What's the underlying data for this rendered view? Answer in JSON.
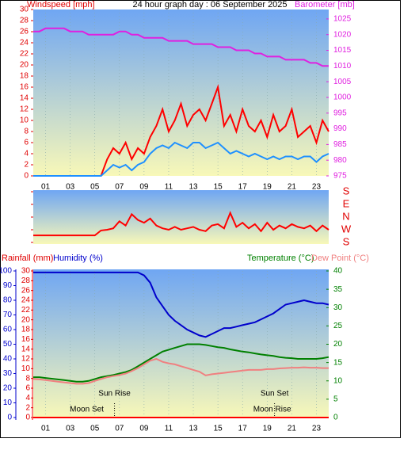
{
  "chart_data": [
    {
      "type": "line",
      "title": "24 hour graph day : 06 September 2025",
      "ylabel": "Windspeed [mph]",
      "y2label": "Barometer [mb]",
      "xlim": [
        0,
        24
      ],
      "xticks": [
        {
          "value": 1,
          "label": "01"
        },
        {
          "value": 3,
          "label": "03"
        },
        {
          "value": 5,
          "label": "05"
        },
        {
          "value": 7,
          "label": "07"
        },
        {
          "value": 9,
          "label": "09"
        },
        {
          "value": 11,
          "label": "11"
        },
        {
          "value": 13,
          "label": "13"
        },
        {
          "value": 15,
          "label": "15"
        },
        {
          "value": 17,
          "label": "17"
        },
        {
          "value": 19,
          "label": "19"
        },
        {
          "value": 21,
          "label": "21"
        },
        {
          "value": 23,
          "label": "23"
        }
      ],
      "ylim": [
        0,
        30
      ],
      "yticks": [
        0,
        2,
        4,
        6,
        8,
        10,
        12,
        14,
        16,
        18,
        20,
        22,
        24,
        26,
        28,
        30
      ],
      "y2lim": [
        975,
        1028
      ],
      "y2ticks": [
        975,
        980,
        985,
        990,
        995,
        1000,
        1005,
        1010,
        1015,
        1020,
        1025
      ],
      "x": [
        0,
        0.5,
        1,
        1.5,
        2,
        2.5,
        3,
        3.5,
        4,
        4.5,
        5,
        5.5,
        6,
        6.5,
        7,
        7.5,
        8,
        8.5,
        9,
        9.5,
        10,
        10.5,
        11,
        11.5,
        12,
        12.5,
        13,
        13.5,
        14,
        14.5,
        15,
        15.5,
        16,
        16.5,
        17,
        17.5,
        18,
        18.5,
        19,
        19.5,
        20,
        20.5,
        21,
        21.5,
        22,
        22.5,
        23,
        23.5,
        24
      ],
      "series": [
        {
          "color": "#ff0000",
          "axis": "y",
          "values": [
            0,
            0,
            0,
            0,
            0,
            0,
            0,
            0,
            0,
            0,
            0,
            0,
            3,
            5,
            4,
            6,
            3,
            5,
            4,
            7,
            9,
            12,
            8,
            10,
            13,
            9,
            11,
            12,
            10,
            13,
            16,
            9,
            11,
            8,
            12,
            9,
            8,
            10,
            7,
            11,
            8,
            9,
            12,
            7,
            8,
            9,
            6,
            10,
            8
          ]
        },
        {
          "color": "#1e90ff",
          "axis": "y",
          "values": [
            0,
            0,
            0,
            0,
            0,
            0,
            0,
            0,
            0,
            0,
            0,
            0,
            1,
            2,
            1.5,
            2,
            1,
            2,
            2.5,
            4,
            5,
            5.5,
            5,
            6,
            5.5,
            5,
            6,
            6,
            5,
            5.5,
            6,
            5,
            4,
            4.5,
            4,
            3.5,
            4,
            3.5,
            3,
            3.5,
            3,
            3.5,
            3.5,
            3,
            3.5,
            3.5,
            2.5,
            3.5,
            4
          ]
        },
        {
          "color": "#e020e0",
          "axis": "y2",
          "values": [
            1021,
            1021,
            1022,
            1022,
            1022,
            1022,
            1021,
            1021,
            1021,
            1020,
            1020,
            1020,
            1020,
            1020,
            1021,
            1021,
            1020,
            1020,
            1019,
            1019,
            1019,
            1019,
            1018,
            1018,
            1018,
            1018,
            1017,
            1017,
            1017,
            1017,
            1016,
            1016,
            1016,
            1015,
            1015,
            1015,
            1014,
            1014,
            1013,
            1013,
            1013,
            1012,
            1012,
            1012,
            1012,
            1011,
            1011,
            1010,
            1010
          ]
        }
      ]
    },
    {
      "type": "line",
      "xlim": [
        0,
        24
      ],
      "ylim": [
        -180,
        180
      ],
      "yticks": [
        {
          "value": 180,
          "label": "S"
        },
        {
          "value": 90,
          "label": "E"
        },
        {
          "value": 0,
          "label": "N"
        },
        {
          "value": -90,
          "label": "W"
        },
        {
          "value": -180,
          "label": "S"
        }
      ],
      "x": [
        0,
        0.5,
        1,
        1.5,
        2,
        2.5,
        3,
        3.5,
        4,
        4.5,
        5,
        5.5,
        6,
        6.5,
        7,
        7.5,
        8,
        8.5,
        9,
        9.5,
        10,
        10.5,
        11,
        11.5,
        12,
        12.5,
        13,
        13.5,
        14,
        14.5,
        15,
        15.5,
        16,
        16.5,
        17,
        17.5,
        18,
        18.5,
        19,
        19.5,
        20,
        20.5,
        21,
        21.5,
        22,
        22.5,
        23,
        23.5,
        24
      ],
      "series": [
        {
          "color": "#ff0000",
          "axis": "y",
          "values": [
            -130,
            -130,
            -130,
            -130,
            -130,
            -130,
            -130,
            -130,
            -130,
            -130,
            -130,
            -95,
            -90,
            -80,
            -30,
            -60,
            20,
            -20,
            -40,
            -10,
            -60,
            -80,
            -90,
            -70,
            -90,
            -80,
            -70,
            -90,
            -100,
            -60,
            -50,
            -80,
            30,
            -70,
            -40,
            -80,
            -50,
            -100,
            -40,
            -90,
            -60,
            -80,
            -50,
            -70,
            -80,
            -60,
            -100,
            -60,
            -90
          ]
        }
      ]
    },
    {
      "type": "line",
      "xlim": [
        0,
        24
      ],
      "xticks": [
        {
          "value": 1,
          "label": "01"
        },
        {
          "value": 3,
          "label": "03"
        },
        {
          "value": 5,
          "label": "05"
        },
        {
          "value": 7,
          "label": "07"
        },
        {
          "value": 9,
          "label": "09"
        },
        {
          "value": 11,
          "label": "11"
        },
        {
          "value": 13,
          "label": "13"
        },
        {
          "value": 15,
          "label": "15"
        },
        {
          "value": 17,
          "label": "17"
        },
        {
          "value": 19,
          "label": "19"
        },
        {
          "value": 21,
          "label": "21"
        },
        {
          "value": 23,
          "label": "23"
        }
      ],
      "ylim": [
        0,
        30
      ],
      "yticks": [
        0,
        2,
        4,
        6,
        8,
        10,
        12,
        14,
        16,
        18,
        20,
        22,
        24,
        26,
        28,
        30
      ],
      "y3lim": [
        0,
        100
      ],
      "y3ticks": [
        0,
        10,
        20,
        30,
        40,
        50,
        60,
        70,
        80,
        90,
        100
      ],
      "y2lim": [
        0,
        40
      ],
      "y2ticks": [
        0,
        5,
        10,
        15,
        20,
        25,
        30,
        35,
        40
      ],
      "events": [
        6.6,
        19.6
      ],
      "annotations": [
        "Sun Rise",
        "Moon Set",
        "Sun Set",
        "Moon Rise"
      ],
      "x": [
        0,
        0.5,
        1,
        1.5,
        2,
        2.5,
        3,
        3.5,
        4,
        4.5,
        5,
        5.5,
        6,
        6.5,
        7,
        7.5,
        8,
        8.5,
        9,
        9.5,
        10,
        10.5,
        11,
        11.5,
        12,
        12.5,
        13,
        13.5,
        14,
        14.5,
        15,
        15.5,
        16,
        16.5,
        17,
        17.5,
        18,
        18.5,
        19,
        19.5,
        20,
        20.5,
        21,
        21.5,
        22,
        22.5,
        23,
        23.5,
        24
      ],
      "series": [
        {
          "name": "Rainfall (mm)",
          "color": "#ff0000",
          "axis": "y",
          "values": [
            0,
            0,
            0,
            0,
            0,
            0,
            0,
            0,
            0,
            0,
            0,
            0,
            0,
            0,
            0,
            0,
            0,
            0,
            0,
            0,
            0,
            0,
            0,
            0,
            0,
            0,
            0,
            0,
            0,
            0,
            0,
            0,
            0,
            0,
            0,
            0,
            0,
            0,
            0,
            0,
            0,
            0,
            0,
            0,
            0,
            0,
            0,
            0,
            0
          ]
        },
        {
          "name": "Humidity (%)",
          "color": "#0000cc",
          "axis": "y3",
          "values": [
            99,
            99,
            99,
            99,
            99,
            99,
            99,
            99,
            99,
            99,
            99,
            99,
            99,
            99,
            99,
            99,
            99,
            99,
            97,
            92,
            82,
            76,
            70,
            66,
            63,
            60,
            58,
            56,
            55,
            57,
            59,
            61,
            61,
            62,
            63,
            64,
            65,
            67,
            69,
            71,
            74,
            77,
            78,
            79,
            80,
            79,
            78,
            78,
            77
          ]
        },
        {
          "name": "Temperature (°C)",
          "color": "#008000",
          "axis": "y2",
          "values": [
            11,
            11,
            10.8,
            10.6,
            10.4,
            10.2,
            10,
            9.8,
            9.8,
            10,
            10.5,
            11,
            11.3,
            11.6,
            12,
            12.4,
            13,
            14,
            15,
            16,
            17,
            18,
            18.5,
            19,
            19.5,
            20,
            20,
            20,
            19.8,
            19.5,
            19.2,
            19,
            18.6,
            18.3,
            18,
            17.8,
            17.5,
            17.2,
            17,
            16.8,
            16.5,
            16.3,
            16.2,
            16,
            16,
            16,
            16,
            16.2,
            16.5
          ]
        },
        {
          "name": "Dew Point (°C)",
          "color": "#f08080",
          "axis": "y2",
          "values": [
            10.5,
            10.4,
            10.2,
            10,
            9.8,
            9.6,
            9.4,
            9.2,
            9.2,
            9.4,
            10,
            10.5,
            11,
            11.3,
            11.6,
            12,
            12.7,
            13.5,
            14.5,
            15.5,
            16,
            15.2,
            14.8,
            14.5,
            14,
            13.5,
            13,
            12.5,
            11.5,
            11.8,
            12,
            12.2,
            12.4,
            12.6,
            12.8,
            13,
            13,
            13,
            13.2,
            13.2,
            13.4,
            13.5,
            13.6,
            13.6,
            13.7,
            13.6,
            13.6,
            13.5,
            13.5
          ]
        }
      ]
    }
  ]
}
